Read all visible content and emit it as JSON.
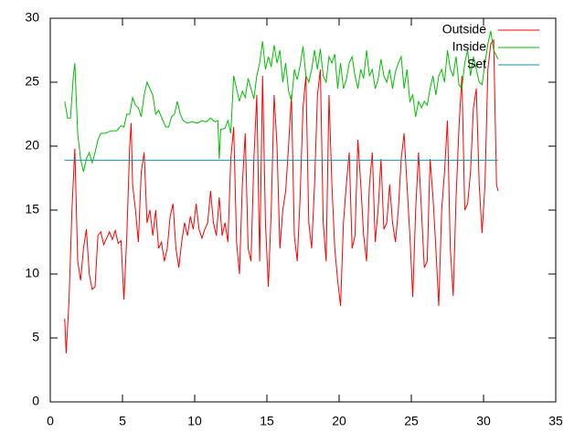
{
  "chart_data": {
    "type": "line",
    "xlim": [
      0,
      35
    ],
    "ylim": [
      0,
      30
    ],
    "xticks": [
      0,
      5,
      10,
      15,
      20,
      25,
      30,
      35
    ],
    "yticks": [
      0,
      5,
      10,
      15,
      20,
      25,
      30
    ],
    "grid": false,
    "legend": "top-right",
    "series": [
      {
        "name": "Outside",
        "color": "#ff0000",
        "x": [
          1.0,
          1.1,
          1.3,
          1.5,
          1.7,
          1.9,
          2.1,
          2.3,
          2.5,
          2.7,
          2.9,
          3.1,
          3.3,
          3.5,
          3.7,
          3.9,
          4.1,
          4.3,
          4.5,
          4.7,
          4.9,
          5.1,
          5.3,
          5.5,
          5.6,
          5.7,
          5.9,
          6.1,
          6.3,
          6.5,
          6.7,
          6.9,
          7.1,
          7.3,
          7.5,
          7.7,
          7.9,
          8.1,
          8.3,
          8.5,
          8.7,
          8.9,
          9.1,
          9.3,
          9.5,
          9.7,
          9.9,
          10.1,
          10.3,
          10.5,
          10.7,
          10.9,
          11.1,
          11.3,
          11.5,
          11.7,
          11.9,
          12.1,
          12.3,
          12.5,
          12.7,
          12.9,
          13.1,
          13.3,
          13.5,
          13.7,
          13.9,
          14.1,
          14.3,
          14.5,
          14.7,
          14.9,
          15.1,
          15.3,
          15.5,
          15.7,
          15.9,
          16.1,
          16.3,
          16.5,
          16.7,
          16.9,
          17.1,
          17.3,
          17.5,
          17.7,
          17.9,
          18.1,
          18.3,
          18.5,
          18.7,
          18.9,
          19.1,
          19.3,
          19.5,
          19.7,
          19.9,
          20.1,
          20.3,
          20.5,
          20.7,
          20.9,
          21.1,
          21.3,
          21.5,
          21.7,
          21.9,
          22.1,
          22.3,
          22.5,
          22.7,
          22.9,
          23.1,
          23.3,
          23.5,
          23.7,
          23.9,
          24.1,
          24.3,
          24.5,
          24.7,
          24.9,
          25.1,
          25.3,
          25.5,
          25.7,
          25.9,
          26.1,
          26.3,
          26.5,
          26.7,
          26.9,
          27.1,
          27.3,
          27.5,
          27.7,
          27.9,
          28.1,
          28.3,
          28.5,
          28.7,
          28.9,
          29.1,
          29.3,
          29.5,
          29.7,
          29.9,
          30.1,
          30.3,
          30.5,
          30.7,
          30.9,
          31.0
        ],
        "values": [
          6.5,
          3.8,
          8,
          15,
          19.8,
          11,
          9.5,
          12,
          13.5,
          10,
          8.8,
          9,
          13,
          13.3,
          12.3,
          12.8,
          13.3,
          12.7,
          13.4,
          12.4,
          12.6,
          8,
          13,
          20,
          21.8,
          17,
          15,
          12.5,
          18,
          19.5,
          14,
          15,
          13,
          15,
          12,
          12.5,
          11,
          12,
          14.5,
          15.5,
          12,
          10.5,
          12.5,
          14,
          13,
          14.5,
          13.5,
          15.5,
          13.5,
          12.8,
          13.5,
          14,
          16.5,
          14,
          13,
          16,
          13,
          14,
          12.5,
          19,
          21.5,
          12.5,
          10,
          17,
          21,
          12,
          11,
          19,
          24,
          11,
          25.5,
          14,
          9,
          15,
          24,
          20,
          12,
          15,
          16.5,
          20,
          24,
          13,
          11,
          16,
          23,
          25.5,
          14,
          12,
          17,
          24,
          26,
          14,
          11,
          24,
          17,
          12,
          9.5,
          7.5,
          14,
          17,
          19.5,
          12,
          13,
          20.5,
          17,
          13,
          11,
          17,
          19.5,
          12.5,
          15,
          19,
          13.5,
          14,
          17,
          14,
          12.5,
          15,
          19,
          21,
          17,
          13,
          8.2,
          15,
          19.5,
          15,
          10.5,
          11,
          19,
          16,
          12,
          7.5,
          15,
          18,
          22,
          12,
          8.3,
          16,
          21.5,
          25.5,
          15,
          15.5,
          18,
          23,
          24.5,
          17,
          13.2,
          17,
          26,
          28,
          28.3,
          17,
          16.5
        ]
      },
      {
        "name": "Inside",
        "color": "#00c000",
        "x": [
          1.0,
          1.2,
          1.4,
          1.6,
          1.7,
          1.9,
          2.1,
          2.3,
          2.5,
          2.7,
          2.9,
          3.1,
          3.3,
          3.5,
          3.8,
          4.2,
          4.6,
          4.9,
          5.1,
          5.3,
          5.5,
          5.7,
          5.9,
          6.1,
          6.3,
          6.5,
          6.7,
          6.9,
          7.1,
          7.3,
          7.5,
          7.8,
          8.0,
          8.2,
          8.4,
          8.6,
          8.8,
          9.0,
          9.2,
          9.5,
          9.8,
          10.2,
          10.5,
          10.8,
          11.1,
          11.4,
          11.6,
          11.7,
          11.8,
          12.1,
          12.3,
          12.5,
          12.7,
          12.9,
          13.1,
          13.3,
          13.5,
          13.7,
          13.9,
          14.1,
          14.3,
          14.5,
          14.7,
          14.9,
          15.1,
          15.3,
          15.5,
          15.7,
          15.9,
          16.1,
          16.3,
          16.5,
          16.7,
          16.9,
          17.1,
          17.3,
          17.5,
          17.7,
          17.9,
          18.1,
          18.3,
          18.5,
          18.7,
          18.9,
          19.1,
          19.3,
          19.5,
          19.7,
          19.9,
          20.1,
          20.3,
          20.5,
          20.7,
          20.9,
          21.1,
          21.3,
          21.5,
          21.7,
          21.9,
          22.1,
          22.3,
          22.5,
          22.7,
          22.9,
          23.1,
          23.3,
          23.5,
          23.7,
          23.9,
          24.1,
          24.3,
          24.5,
          24.7,
          24.9,
          25.1,
          25.3,
          25.5,
          25.7,
          25.9,
          26.1,
          26.3,
          26.5,
          26.7,
          26.9,
          27.1,
          27.3,
          27.5,
          27.7,
          27.9,
          28.1,
          28.3,
          28.5,
          28.7,
          28.9,
          29.1,
          29.3,
          29.5,
          29.7,
          29.9,
          30.1,
          30.3,
          30.5,
          30.7,
          31.0
        ],
        "values": [
          23.5,
          22.2,
          22.2,
          25.5,
          26.5,
          21,
          19,
          18,
          19,
          19.5,
          18.7,
          19.5,
          20.5,
          21,
          21,
          21.2,
          21.2,
          21.6,
          21.5,
          22.5,
          22.5,
          23.8,
          23.2,
          23,
          22.3,
          24,
          25,
          24.5,
          24,
          22.5,
          22.8,
          22,
          21.5,
          21.5,
          22.3,
          22.5,
          23.5,
          22.5,
          22,
          21.8,
          21.9,
          21.8,
          22,
          21.9,
          22.2,
          21.9,
          22,
          19,
          21.3,
          21.4,
          22,
          21,
          25.5,
          24.5,
          23.5,
          24.3,
          23.8,
          25.3,
          24.5,
          23.7,
          25.5,
          26.5,
          28.2,
          26,
          27,
          26.2,
          27.9,
          26.5,
          27.5,
          25,
          26.5,
          24.3,
          23.5,
          26,
          25.2,
          26.3,
          27.8,
          25.5,
          25,
          26,
          27.5,
          26,
          27.6,
          25.5,
          25,
          27,
          26.5,
          27.2,
          24.5,
          26.5,
          24.5,
          25.2,
          26.5,
          27,
          25.5,
          24.5,
          26,
          25.3,
          27.5,
          25.5,
          26,
          24.5,
          25.2,
          26.8,
          25.5,
          25,
          26,
          24.5,
          25.8,
          26.5,
          27,
          24.5,
          26,
          23.5,
          24,
          22.3,
          23.5,
          23,
          23.5,
          23.2,
          24.5,
          25.5,
          24,
          25.5,
          26,
          25,
          27.5,
          26,
          25.5,
          27,
          24.8,
          24.5,
          26.5,
          27.5,
          25.5,
          27,
          26,
          25,
          24.8,
          26.5,
          28,
          29,
          27.5,
          26.8
        ]
      },
      {
        "name": "Set",
        "color": "#1a90a8",
        "x": [
          1,
          31
        ],
        "values": [
          18.9,
          18.9
        ]
      }
    ]
  }
}
